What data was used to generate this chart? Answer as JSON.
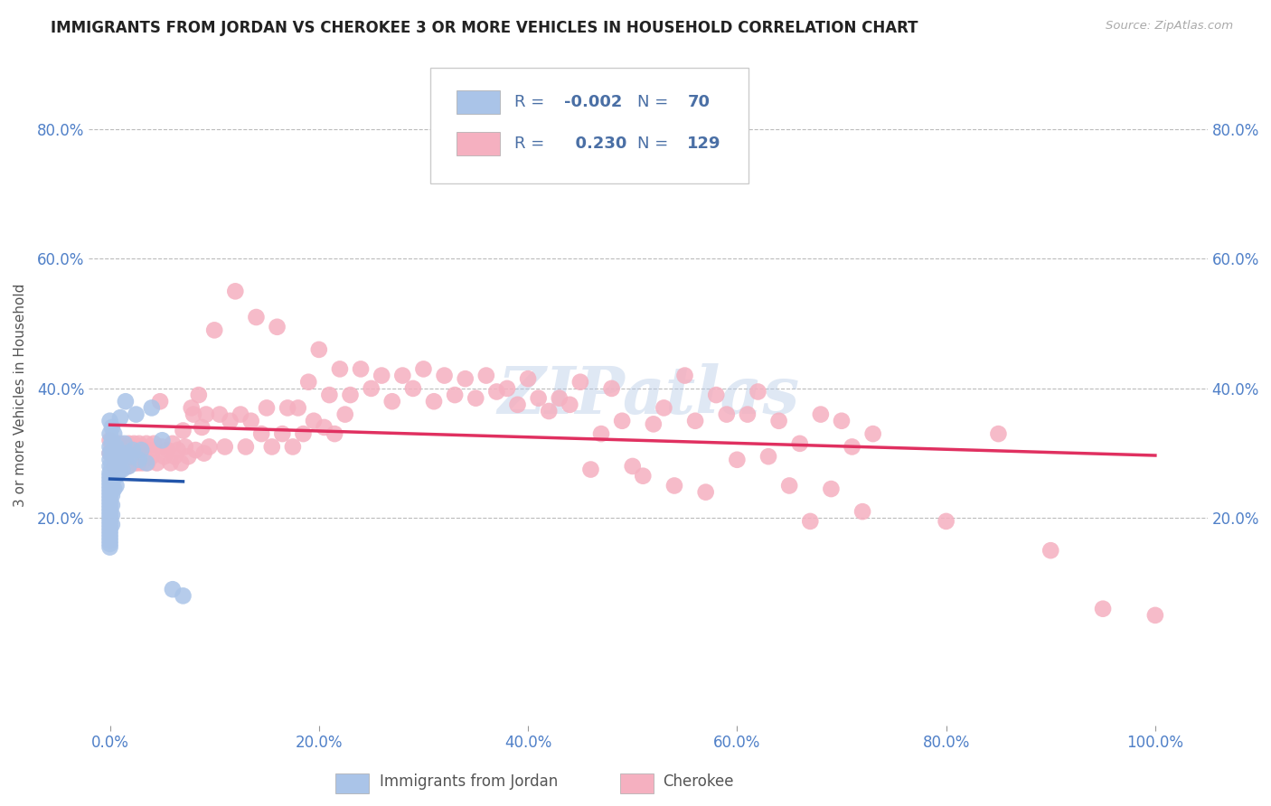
{
  "title": "IMMIGRANTS FROM JORDAN VS CHEROKEE 3 OR MORE VEHICLES IN HOUSEHOLD CORRELATION CHART",
  "source": "Source: ZipAtlas.com",
  "ylabel": "3 or more Vehicles in Household",
  "xlim": [
    -0.02,
    1.05
  ],
  "ylim": [
    -0.12,
    0.9
  ],
  "xtick_positions": [
    0.0,
    0.2,
    0.4,
    0.6,
    0.8,
    1.0
  ],
  "xtick_labels": [
    "0.0%",
    "20.0%",
    "40.0%",
    "60.0%",
    "80.0%",
    "100.0%"
  ],
  "ytick_vals": [
    0.2,
    0.4,
    0.6,
    0.8
  ],
  "ytick_labels": [
    "20.0%",
    "40.0%",
    "60.0%",
    "80.0%"
  ],
  "legend_color": "#4a6fa5",
  "jordan_color": "#aac4e8",
  "cherokee_color": "#f5b0c0",
  "jordan_line_color": "#2255aa",
  "cherokee_line_color": "#e03060",
  "jordan_scatter": [
    [
      0.0,
      0.35
    ],
    [
      0.0,
      0.33
    ],
    [
      0.0,
      0.31
    ],
    [
      0.0,
      0.3
    ],
    [
      0.0,
      0.29
    ],
    [
      0.0,
      0.28
    ],
    [
      0.0,
      0.27
    ],
    [
      0.0,
      0.265
    ],
    [
      0.0,
      0.26
    ],
    [
      0.0,
      0.255
    ],
    [
      0.0,
      0.25
    ],
    [
      0.0,
      0.245
    ],
    [
      0.0,
      0.24
    ],
    [
      0.0,
      0.235
    ],
    [
      0.0,
      0.23
    ],
    [
      0.0,
      0.225
    ],
    [
      0.0,
      0.22
    ],
    [
      0.0,
      0.215
    ],
    [
      0.0,
      0.21
    ],
    [
      0.0,
      0.205
    ],
    [
      0.0,
      0.2
    ],
    [
      0.0,
      0.195
    ],
    [
      0.0,
      0.19
    ],
    [
      0.0,
      0.185
    ],
    [
      0.0,
      0.18
    ],
    [
      0.0,
      0.175
    ],
    [
      0.0,
      0.17
    ],
    [
      0.0,
      0.165
    ],
    [
      0.0,
      0.16
    ],
    [
      0.0,
      0.155
    ],
    [
      0.002,
      0.34
    ],
    [
      0.002,
      0.32
    ],
    [
      0.002,
      0.3
    ],
    [
      0.002,
      0.28
    ],
    [
      0.002,
      0.265
    ],
    [
      0.002,
      0.25
    ],
    [
      0.002,
      0.235
    ],
    [
      0.002,
      0.22
    ],
    [
      0.002,
      0.205
    ],
    [
      0.002,
      0.19
    ],
    [
      0.004,
      0.33
    ],
    [
      0.004,
      0.305
    ],
    [
      0.004,
      0.285
    ],
    [
      0.004,
      0.265
    ],
    [
      0.004,
      0.245
    ],
    [
      0.006,
      0.31
    ],
    [
      0.006,
      0.295
    ],
    [
      0.006,
      0.28
    ],
    [
      0.006,
      0.265
    ],
    [
      0.006,
      0.25
    ],
    [
      0.008,
      0.3
    ],
    [
      0.008,
      0.285
    ],
    [
      0.008,
      0.27
    ],
    [
      0.01,
      0.355
    ],
    [
      0.01,
      0.29
    ],
    [
      0.01,
      0.275
    ],
    [
      0.012,
      0.295
    ],
    [
      0.012,
      0.275
    ],
    [
      0.014,
      0.315
    ],
    [
      0.015,
      0.38
    ],
    [
      0.016,
      0.3
    ],
    [
      0.018,
      0.28
    ],
    [
      0.02,
      0.295
    ],
    [
      0.022,
      0.305
    ],
    [
      0.025,
      0.36
    ],
    [
      0.028,
      0.29
    ],
    [
      0.03,
      0.305
    ],
    [
      0.035,
      0.285
    ],
    [
      0.04,
      0.37
    ],
    [
      0.05,
      0.32
    ],
    [
      0.06,
      0.09
    ],
    [
      0.07,
      0.08
    ]
  ],
  "cherokee_scatter": [
    [
      0.0,
      0.32
    ],
    [
      0.0,
      0.3
    ],
    [
      0.002,
      0.31
    ],
    [
      0.003,
      0.295
    ],
    [
      0.004,
      0.28
    ],
    [
      0.005,
      0.31
    ],
    [
      0.006,
      0.295
    ],
    [
      0.007,
      0.285
    ],
    [
      0.008,
      0.305
    ],
    [
      0.009,
      0.29
    ],
    [
      0.01,
      0.315
    ],
    [
      0.011,
      0.285
    ],
    [
      0.012,
      0.3
    ],
    [
      0.013,
      0.29
    ],
    [
      0.014,
      0.31
    ],
    [
      0.015,
      0.295
    ],
    [
      0.016,
      0.305
    ],
    [
      0.017,
      0.28
    ],
    [
      0.018,
      0.315
    ],
    [
      0.019,
      0.295
    ],
    [
      0.02,
      0.31
    ],
    [
      0.021,
      0.3
    ],
    [
      0.022,
      0.29
    ],
    [
      0.023,
      0.315
    ],
    [
      0.024,
      0.285
    ],
    [
      0.025,
      0.305
    ],
    [
      0.026,
      0.295
    ],
    [
      0.027,
      0.285
    ],
    [
      0.028,
      0.315
    ],
    [
      0.029,
      0.3
    ],
    [
      0.03,
      0.31
    ],
    [
      0.031,
      0.285
    ],
    [
      0.032,
      0.305
    ],
    [
      0.033,
      0.295
    ],
    [
      0.035,
      0.315
    ],
    [
      0.036,
      0.285
    ],
    [
      0.038,
      0.305
    ],
    [
      0.04,
      0.295
    ],
    [
      0.042,
      0.315
    ],
    [
      0.045,
      0.285
    ],
    [
      0.048,
      0.38
    ],
    [
      0.05,
      0.31
    ],
    [
      0.052,
      0.295
    ],
    [
      0.055,
      0.305
    ],
    [
      0.058,
      0.285
    ],
    [
      0.06,
      0.315
    ],
    [
      0.062,
      0.295
    ],
    [
      0.065,
      0.305
    ],
    [
      0.068,
      0.285
    ],
    [
      0.07,
      0.335
    ],
    [
      0.072,
      0.31
    ],
    [
      0.075,
      0.295
    ],
    [
      0.078,
      0.37
    ],
    [
      0.08,
      0.36
    ],
    [
      0.082,
      0.305
    ],
    [
      0.085,
      0.39
    ],
    [
      0.088,
      0.34
    ],
    [
      0.09,
      0.3
    ],
    [
      0.092,
      0.36
    ],
    [
      0.095,
      0.31
    ],
    [
      0.1,
      0.49
    ],
    [
      0.105,
      0.36
    ],
    [
      0.11,
      0.31
    ],
    [
      0.115,
      0.35
    ],
    [
      0.12,
      0.55
    ],
    [
      0.125,
      0.36
    ],
    [
      0.13,
      0.31
    ],
    [
      0.135,
      0.35
    ],
    [
      0.14,
      0.51
    ],
    [
      0.145,
      0.33
    ],
    [
      0.15,
      0.37
    ],
    [
      0.155,
      0.31
    ],
    [
      0.16,
      0.495
    ],
    [
      0.165,
      0.33
    ],
    [
      0.17,
      0.37
    ],
    [
      0.175,
      0.31
    ],
    [
      0.18,
      0.37
    ],
    [
      0.185,
      0.33
    ],
    [
      0.19,
      0.41
    ],
    [
      0.195,
      0.35
    ],
    [
      0.2,
      0.46
    ],
    [
      0.205,
      0.34
    ],
    [
      0.21,
      0.39
    ],
    [
      0.215,
      0.33
    ],
    [
      0.22,
      0.43
    ],
    [
      0.225,
      0.36
    ],
    [
      0.23,
      0.39
    ],
    [
      0.24,
      0.43
    ],
    [
      0.25,
      0.4
    ],
    [
      0.26,
      0.42
    ],
    [
      0.27,
      0.38
    ],
    [
      0.28,
      0.42
    ],
    [
      0.29,
      0.4
    ],
    [
      0.3,
      0.43
    ],
    [
      0.31,
      0.38
    ],
    [
      0.32,
      0.42
    ],
    [
      0.33,
      0.39
    ],
    [
      0.34,
      0.415
    ],
    [
      0.35,
      0.385
    ],
    [
      0.36,
      0.42
    ],
    [
      0.37,
      0.395
    ],
    [
      0.38,
      0.4
    ],
    [
      0.39,
      0.375
    ],
    [
      0.4,
      0.415
    ],
    [
      0.41,
      0.385
    ],
    [
      0.42,
      0.365
    ],
    [
      0.43,
      0.385
    ],
    [
      0.44,
      0.375
    ],
    [
      0.45,
      0.41
    ],
    [
      0.46,
      0.275
    ],
    [
      0.47,
      0.33
    ],
    [
      0.48,
      0.4
    ],
    [
      0.49,
      0.35
    ],
    [
      0.5,
      0.28
    ],
    [
      0.51,
      0.265
    ],
    [
      0.52,
      0.345
    ],
    [
      0.53,
      0.37
    ],
    [
      0.54,
      0.25
    ],
    [
      0.55,
      0.42
    ],
    [
      0.56,
      0.35
    ],
    [
      0.57,
      0.24
    ],
    [
      0.58,
      0.39
    ],
    [
      0.59,
      0.36
    ],
    [
      0.6,
      0.29
    ],
    [
      0.61,
      0.36
    ],
    [
      0.62,
      0.395
    ],
    [
      0.63,
      0.295
    ],
    [
      0.64,
      0.35
    ],
    [
      0.65,
      0.25
    ],
    [
      0.66,
      0.315
    ],
    [
      0.67,
      0.195
    ],
    [
      0.68,
      0.36
    ],
    [
      0.69,
      0.245
    ],
    [
      0.7,
      0.35
    ],
    [
      0.71,
      0.31
    ],
    [
      0.72,
      0.21
    ],
    [
      0.73,
      0.33
    ],
    [
      0.8,
      0.195
    ],
    [
      0.85,
      0.33
    ],
    [
      0.9,
      0.15
    ],
    [
      0.95,
      0.06
    ],
    [
      1.0,
      0.05
    ]
  ],
  "watermark": "ZIPatlas",
  "background_color": "#ffffff",
  "grid_color": "#bbbbbb",
  "title_fontsize": 12,
  "tick_label_color": "#5080c8"
}
